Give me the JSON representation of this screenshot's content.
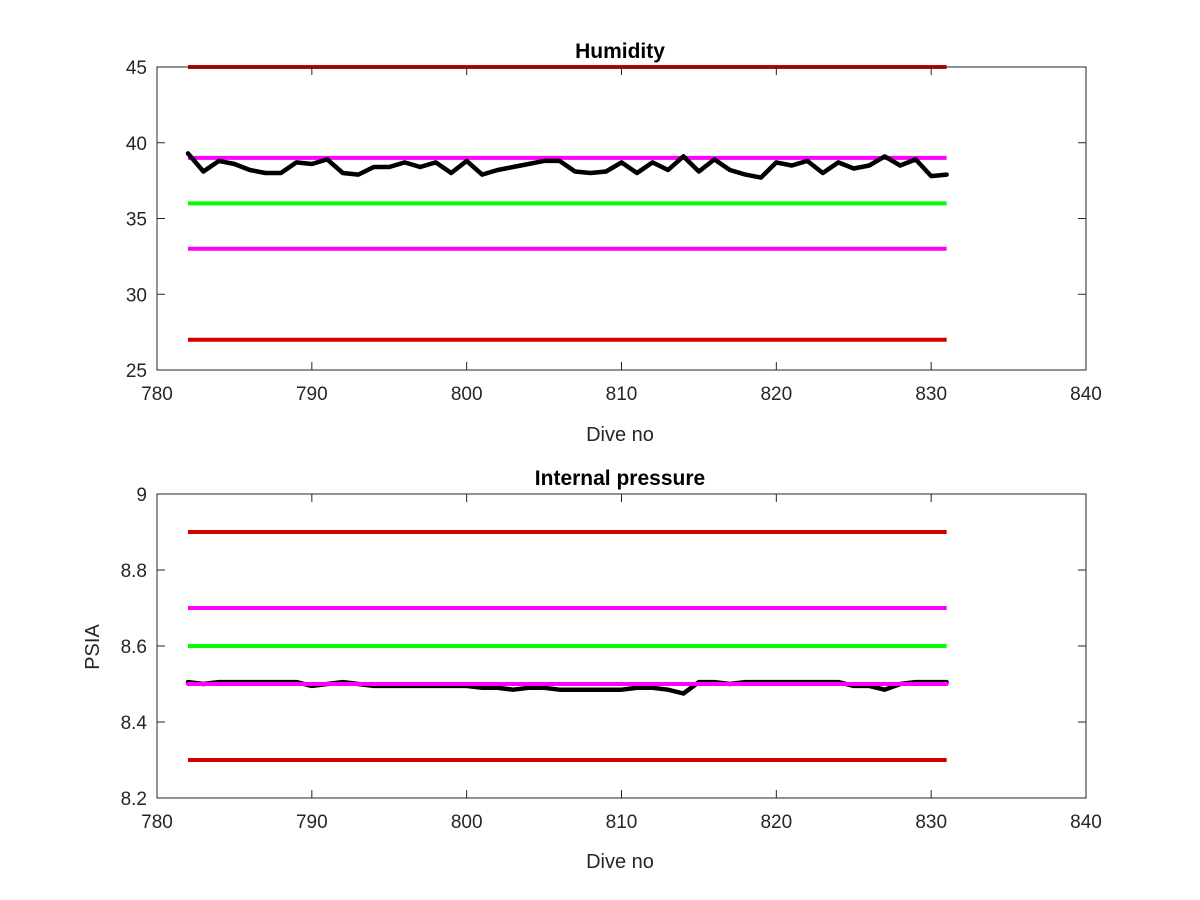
{
  "colors": {
    "red": "#d40000",
    "magenta": "#ff00ff",
    "green": "#00ff00",
    "data": "#000000",
    "axis": "#262626"
  },
  "chart_data": [
    {
      "type": "line",
      "title": "Humidity",
      "xlabel": "Dive no",
      "ylabel": "",
      "xlim": [
        780,
        840
      ],
      "ylim": [
        25,
        45
      ],
      "xticks": [
        "780",
        "790",
        "800",
        "810",
        "820",
        "830",
        "840"
      ],
      "yticks": [
        "25",
        "30",
        "35",
        "40",
        "45"
      ],
      "grid": false,
      "thresholds": [
        {
          "y": 45,
          "color": "#d40000",
          "x": [
            782,
            831
          ]
        },
        {
          "y": 39,
          "color": "#ff00ff",
          "x": [
            782,
            831
          ]
        },
        {
          "y": 36,
          "color": "#00ff00",
          "x": [
            782,
            831
          ]
        },
        {
          "y": 33,
          "color": "#ff00ff",
          "x": [
            782,
            831
          ]
        },
        {
          "y": 27,
          "color": "#d40000",
          "x": [
            782,
            831
          ]
        }
      ],
      "series": [
        {
          "color": "#000000",
          "x": [
            782,
            783,
            784,
            785,
            786,
            787,
            788,
            789,
            790,
            791,
            792,
            793,
            794,
            795,
            796,
            797,
            798,
            799,
            800,
            801,
            802,
            803,
            804,
            805,
            806,
            807,
            808,
            809,
            810,
            811,
            812,
            813,
            814,
            815,
            816,
            817,
            818,
            819,
            820,
            821,
            822,
            823,
            824,
            825,
            826,
            827,
            828,
            829,
            830,
            831
          ],
          "values": [
            39.3,
            38.1,
            38.8,
            38.6,
            38.2,
            38.0,
            38.0,
            38.7,
            38.6,
            38.9,
            38.0,
            37.9,
            38.4,
            38.4,
            38.7,
            38.4,
            38.7,
            38.0,
            38.8,
            37.9,
            38.2,
            38.4,
            38.6,
            38.8,
            38.8,
            38.1,
            38.0,
            38.1,
            38.7,
            38.0,
            38.7,
            38.2,
            39.1,
            38.1,
            38.9,
            38.2,
            37.9,
            37.7,
            38.7,
            38.5,
            38.8,
            38.0,
            38.7,
            38.3,
            38.5,
            39.1,
            38.5,
            38.9,
            37.8,
            37.9
          ]
        }
      ]
    },
    {
      "type": "line",
      "title": "Internal pressure",
      "xlabel": "Dive no",
      "ylabel": "PSIA",
      "xlim": [
        780,
        840
      ],
      "ylim": [
        8.2,
        9.0
      ],
      "xticks": [
        "780",
        "790",
        "800",
        "810",
        "820",
        "830",
        "840"
      ],
      "yticks": [
        "8.2",
        "8.4",
        "8.6",
        "8.8",
        "9"
      ],
      "grid": false,
      "thresholds": [
        {
          "y": 8.9,
          "color": "#d40000",
          "x": [
            782,
            831
          ]
        },
        {
          "y": 8.7,
          "color": "#ff00ff",
          "x": [
            782,
            831
          ]
        },
        {
          "y": 8.6,
          "color": "#00ff00",
          "x": [
            782,
            831
          ]
        },
        {
          "y": 8.3,
          "color": "#d40000",
          "x": [
            782,
            831
          ]
        }
      ],
      "series": [
        {
          "color": "#000000",
          "x": [
            782,
            783,
            784,
            785,
            786,
            787,
            788,
            789,
            790,
            791,
            792,
            793,
            794,
            795,
            796,
            797,
            798,
            799,
            800,
            801,
            802,
            803,
            804,
            805,
            806,
            807,
            808,
            809,
            810,
            811,
            812,
            813,
            814,
            815,
            816,
            817,
            818,
            819,
            820,
            821,
            822,
            823,
            824,
            825,
            826,
            827,
            828,
            829,
            830,
            831
          ],
          "values": [
            8.505,
            8.5,
            8.505,
            8.505,
            8.505,
            8.505,
            8.505,
            8.505,
            8.495,
            8.5,
            8.505,
            8.5,
            8.495,
            8.495,
            8.495,
            8.495,
            8.495,
            8.495,
            8.495,
            8.49,
            8.49,
            8.485,
            8.49,
            8.49,
            8.485,
            8.485,
            8.485,
            8.485,
            8.485,
            8.49,
            8.49,
            8.485,
            8.475,
            8.505,
            8.505,
            8.5,
            8.505,
            8.505,
            8.505,
            8.505,
            8.505,
            8.505,
            8.505,
            8.495,
            8.495,
            8.485,
            8.5,
            8.505,
            8.505,
            8.505
          ]
        },
        {
          "color": "#ff00ff",
          "x": [
            782,
            831
          ],
          "values": [
            8.5,
            8.5
          ]
        }
      ]
    }
  ]
}
